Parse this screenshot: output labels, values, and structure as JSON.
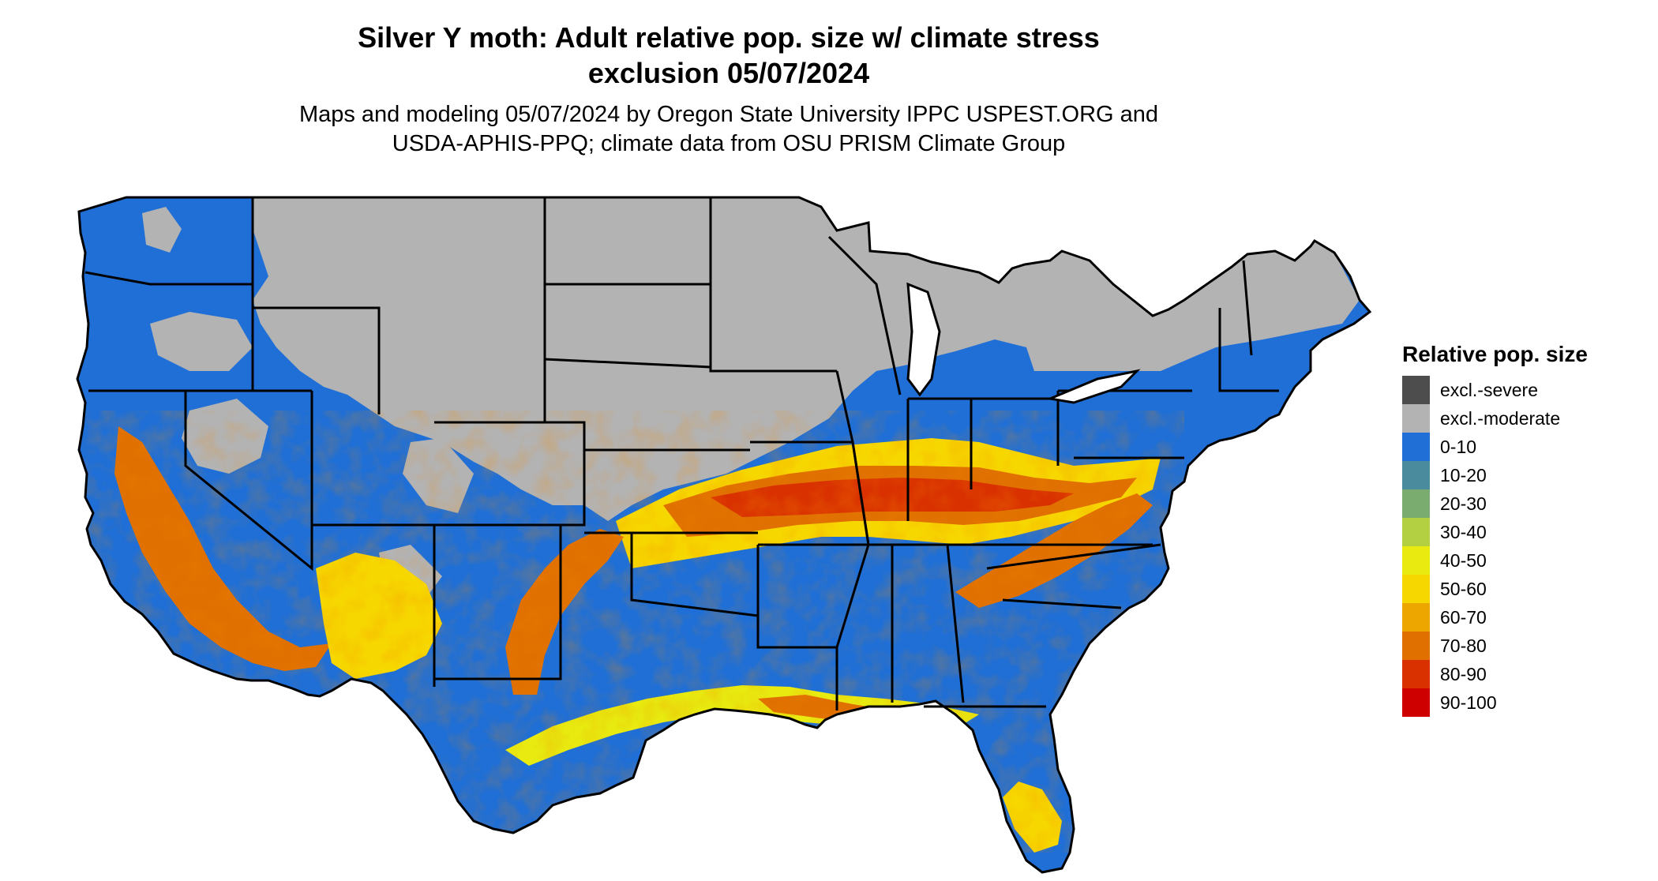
{
  "title": {
    "line1": "Silver Y moth: Adult relative pop. size w/ climate stress",
    "line2": "exclusion 05/07/2024"
  },
  "subtitle": {
    "line1": "Maps and modeling 05/07/2024 by Oregon State University IPPC USPEST.ORG and",
    "line2": "USDA-APHIS-PPQ; climate data from OSU PRISM Climate Group"
  },
  "legend": {
    "title": "Relative pop. size",
    "items": [
      {
        "label": "excl.-severe",
        "color": "#4d4d4d"
      },
      {
        "label": "excl.-moderate",
        "color": "#b3b3b3"
      },
      {
        "label": "0-10",
        "color": "#1f6fd6"
      },
      {
        "label": "10-20",
        "color": "#4a8c9e"
      },
      {
        "label": "20-30",
        "color": "#7aac70"
      },
      {
        "label": "30-40",
        "color": "#b3cf42"
      },
      {
        "label": "40-50",
        "color": "#e8ea10"
      },
      {
        "label": "50-60",
        "color": "#f7d700"
      },
      {
        "label": "60-70",
        "color": "#eda500"
      },
      {
        "label": "70-80",
        "color": "#e07000"
      },
      {
        "label": "80-90",
        "color": "#d93200"
      },
      {
        "label": "90-100",
        "color": "#cf0000"
      }
    ]
  },
  "map": {
    "region": "Contiguous United States",
    "land_color": "#1f6fd6",
    "excluded_color": "#b3b3b3",
    "border_color": "#000000"
  }
}
